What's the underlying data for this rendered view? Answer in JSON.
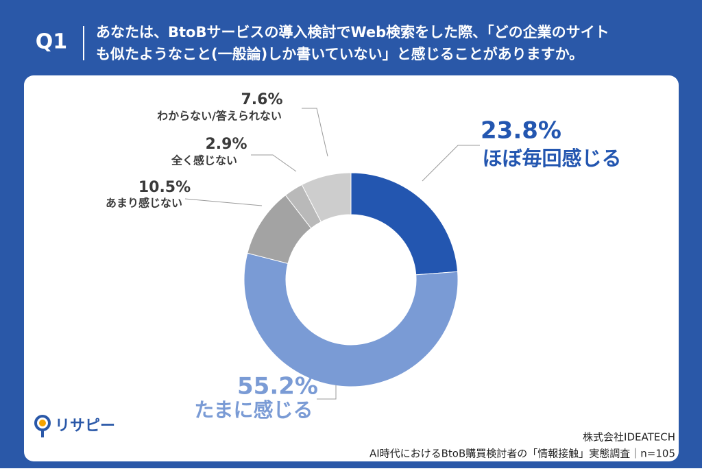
{
  "header": {
    "label": "Q1",
    "question": [
      "あなたは、BtoBサービスの導入検討でWeb検索をした際、「どの企業のサイト",
      "も似たようなこと(一般論)しか書いていない」と感じることがありますか。"
    ]
  },
  "chart_data": {
    "type": "pie",
    "categories": [
      "ほぼ毎回感じる",
      "たまに感じる",
      "あまり感じない",
      "全く感じない",
      "わからない/答えられない"
    ],
    "values": [
      23.8,
      55.2,
      10.5,
      2.9,
      7.6
    ],
    "value_labels": [
      "23.8%",
      "55.2%",
      "10.5%",
      "2.9%",
      "7.6%"
    ],
    "colors": [
      "#2356b0",
      "#7a9bd5",
      "#a3a3a3",
      "#b9b9b9",
      "#cdcdcd"
    ]
  },
  "logo": "リサピー",
  "footer": {
    "company": "株式会社IDEATECH",
    "survey": "AI時代におけるBtoB購買検討者の「情報接触」実態調査｜n=105"
  }
}
